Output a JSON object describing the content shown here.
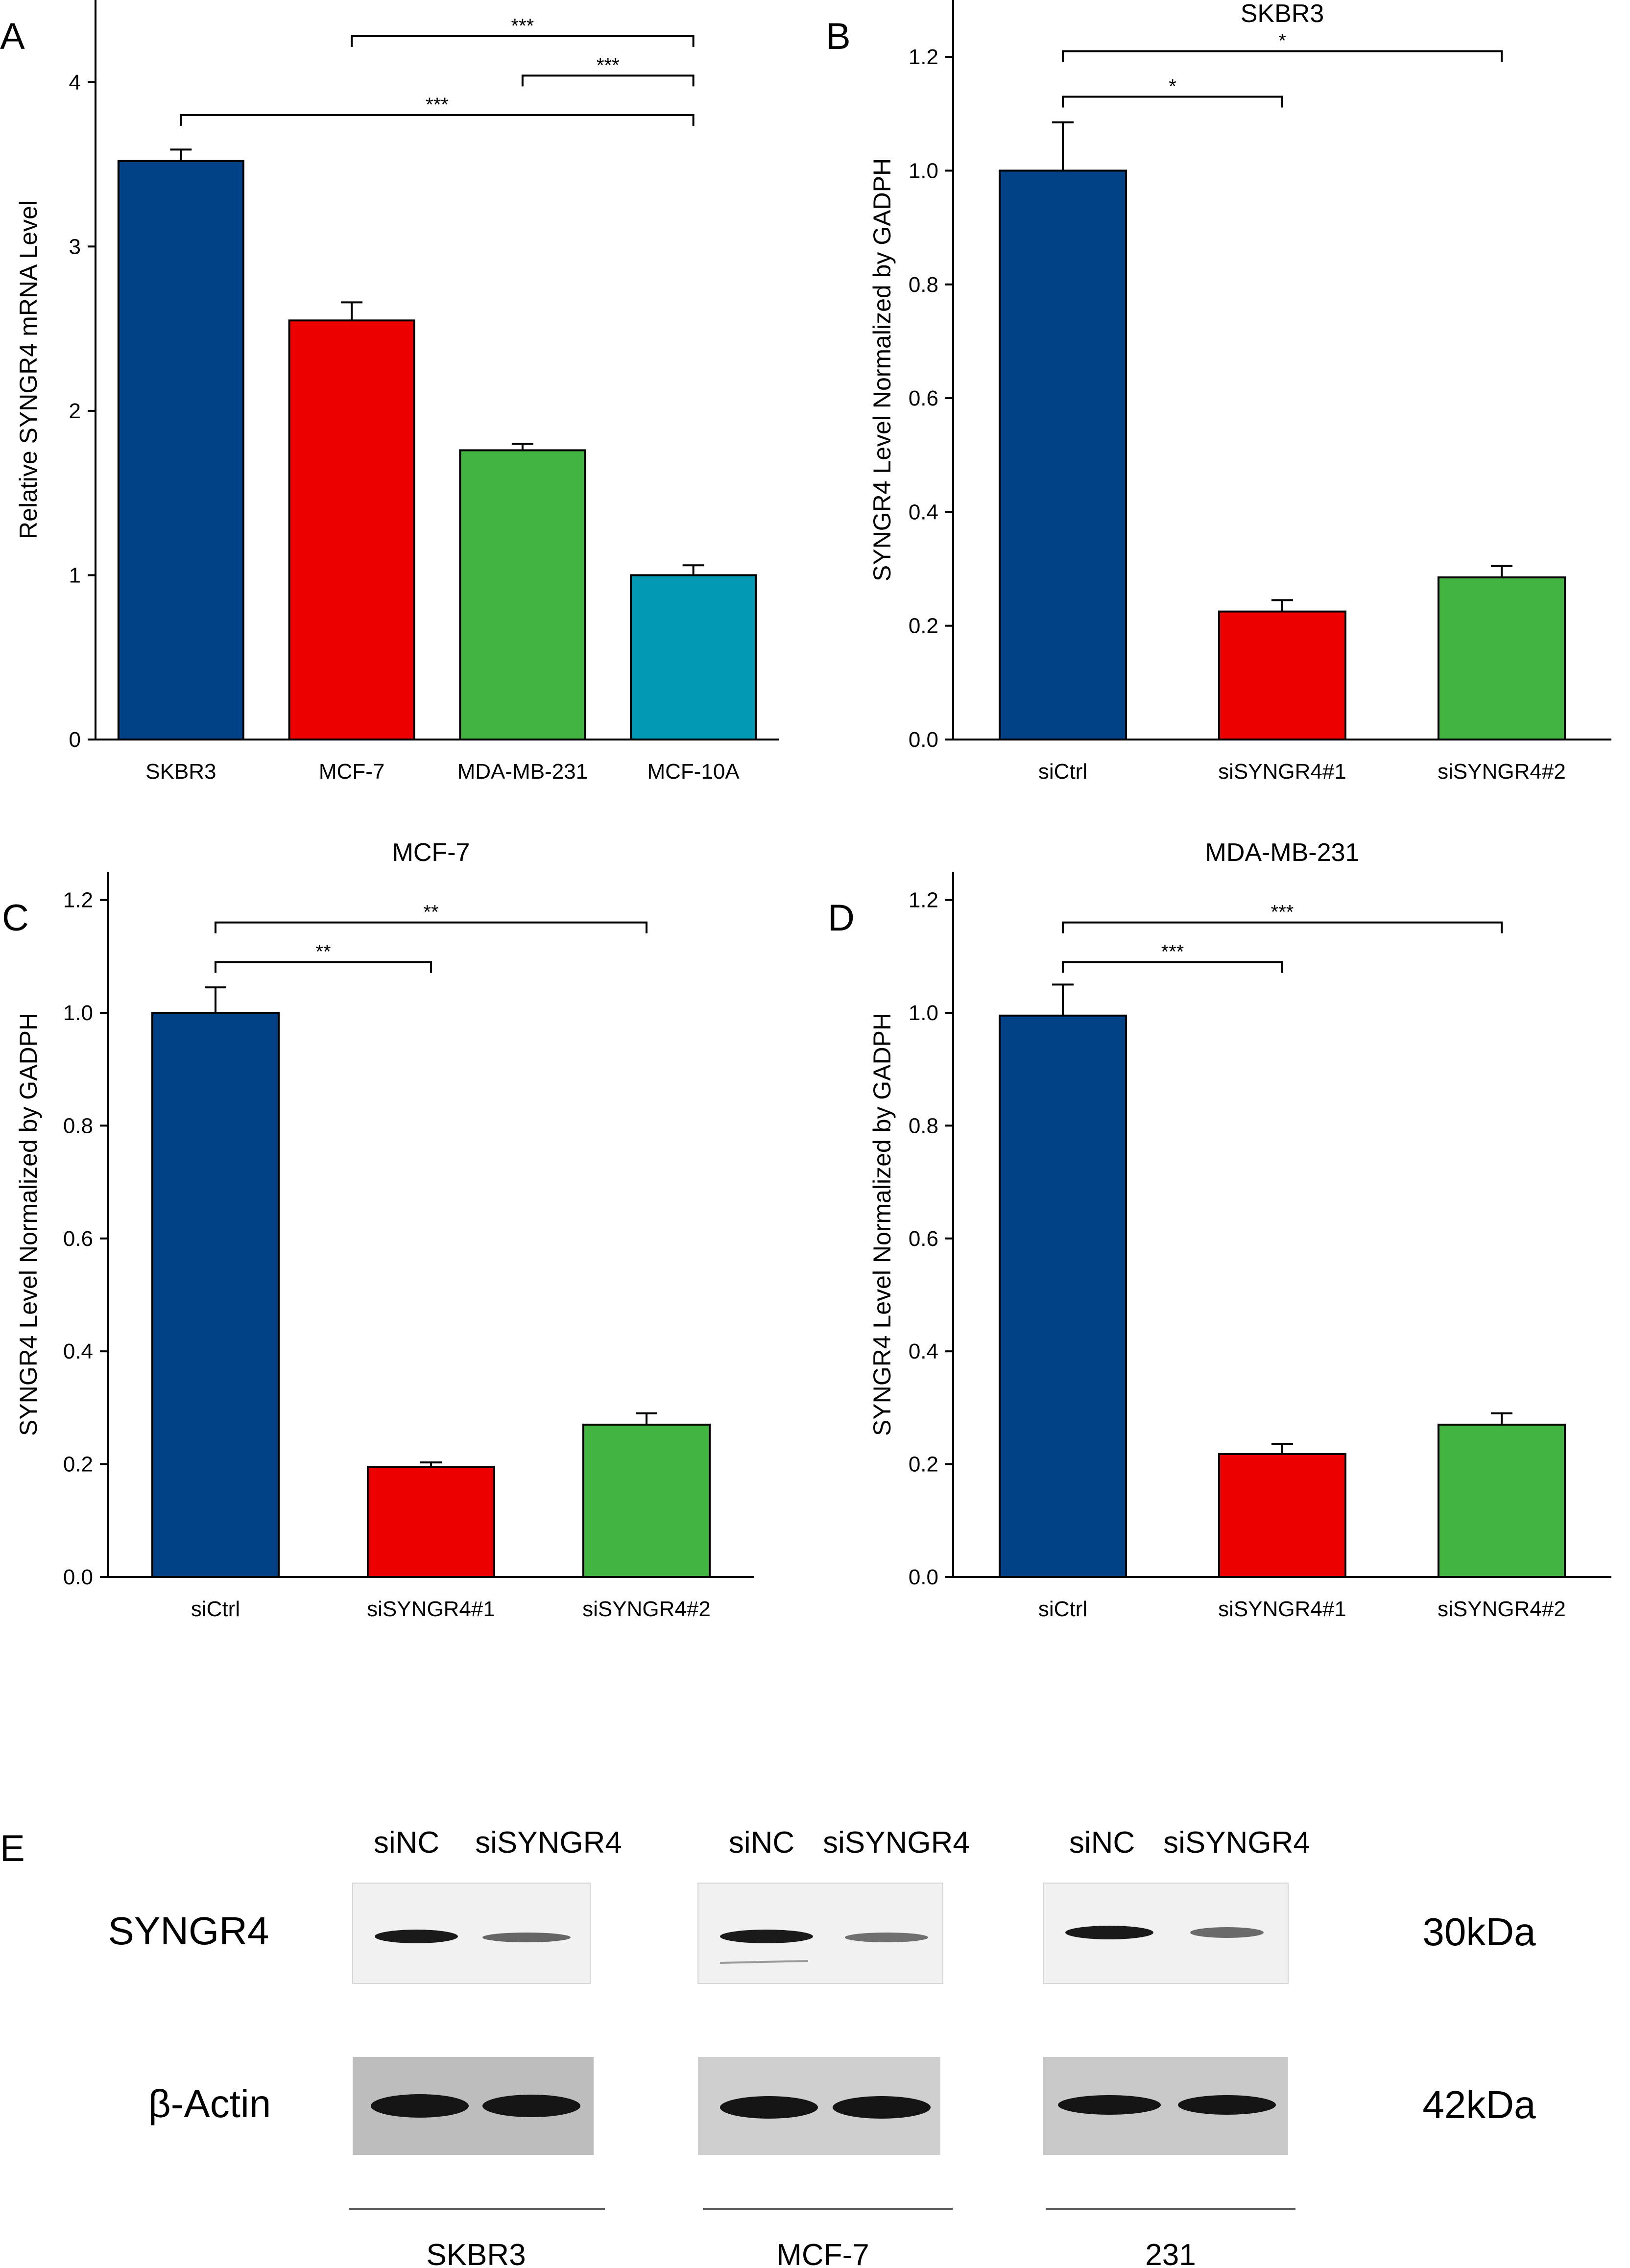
{
  "figure": {
    "panel_labels": [
      "A",
      "B",
      "C",
      "D",
      "E"
    ]
  },
  "colors": {
    "blue": "#004287",
    "red": "#EE0000",
    "green": "#42B540",
    "teal": "#0099B4",
    "axis": "#000000"
  },
  "chart_data": [
    {
      "panel": "A",
      "type": "bar",
      "title": "",
      "xlabel": "",
      "ylabel": "Relative SYNGR4 mRNA Level",
      "categories": [
        "SKBR3",
        "MCF-7",
        "MDA-MB-231",
        "MCF-10A"
      ],
      "values": [
        3.52,
        2.55,
        1.76,
        1.0
      ],
      "errors": [
        0.07,
        0.11,
        0.04,
        0.06
      ],
      "colors": [
        "#004287",
        "#EE0000",
        "#42B540",
        "#0099B4"
      ],
      "ylim": [
        0,
        4.5
      ],
      "yticks": [
        0,
        1,
        2,
        3,
        4
      ],
      "ytick_labels": [
        "0",
        "1",
        "2",
        "3",
        "4"
      ],
      "significance": [
        {
          "from": 1,
          "to": 3,
          "y": 4.28,
          "label": "***"
        },
        {
          "from": 2,
          "to": 3,
          "y": 4.04,
          "label": "***"
        },
        {
          "from": 0,
          "to": 3,
          "y": 3.8,
          "label": "***"
        }
      ]
    },
    {
      "panel": "B",
      "type": "bar",
      "title": "SKBR3",
      "xlabel": "",
      "ylabel": "SYNGR4 Level Normalized by GADPH",
      "categories": [
        "siCtrl",
        "siSYNGR4#1",
        "siSYNGR4#2"
      ],
      "values": [
        1.0,
        0.225,
        0.285
      ],
      "errors": [
        0.085,
        0.02,
        0.02
      ],
      "colors": [
        "#004287",
        "#EE0000",
        "#42B540"
      ],
      "ylim": [
        0,
        1.3
      ],
      "yticks": [
        0,
        0.2,
        0.4,
        0.6,
        0.8,
        1.0,
        1.2
      ],
      "ytick_labels": [
        "0.0",
        "0.2",
        "0.4",
        "0.6",
        "0.8",
        "1.0",
        "1.2"
      ],
      "significance": [
        {
          "from": 0,
          "to": 2,
          "y": 1.21,
          "label": "*"
        },
        {
          "from": 0,
          "to": 1,
          "y": 1.13,
          "label": "*"
        }
      ]
    },
    {
      "panel": "C",
      "type": "bar",
      "title": "MCF-7",
      "xlabel": "",
      "ylabel": "SYNGR4 Level Normalized by GADPH",
      "categories": [
        "siCtrl",
        "siSYNGR4#1",
        "siSYNGR4#2"
      ],
      "values": [
        1.0,
        0.195,
        0.27
      ],
      "errors": [
        0.045,
        0.008,
        0.02
      ],
      "colors": [
        "#004287",
        "#EE0000",
        "#42B540"
      ],
      "ylim": [
        0,
        1.25
      ],
      "yticks": [
        0,
        0.2,
        0.4,
        0.6,
        0.8,
        1.0,
        1.2
      ],
      "ytick_labels": [
        "0.0",
        "0.2",
        "0.4",
        "0.6",
        "0.8",
        "1.0",
        "1.2"
      ],
      "significance": [
        {
          "from": 0,
          "to": 2,
          "y": 1.16,
          "label": "**"
        },
        {
          "from": 0,
          "to": 1,
          "y": 1.09,
          "label": "**"
        }
      ]
    },
    {
      "panel": "D",
      "type": "bar",
      "title": "MDA-MB-231",
      "xlabel": "",
      "ylabel": "SYNGR4 Level Normalized by GADPH",
      "categories": [
        "siCtrl",
        "siSYNGR4#1",
        "siSYNGR4#2"
      ],
      "values": [
        0.995,
        0.218,
        0.27
      ],
      "errors": [
        0.055,
        0.018,
        0.02
      ],
      "colors": [
        "#004287",
        "#EE0000",
        "#42B540"
      ],
      "ylim": [
        0,
        1.25
      ],
      "yticks": [
        0,
        0.2,
        0.4,
        0.6,
        0.8,
        1.0,
        1.2
      ],
      "ytick_labels": [
        "0.0",
        "0.2",
        "0.4",
        "0.6",
        "0.8",
        "1.0",
        "1.2"
      ],
      "significance": [
        {
          "from": 0,
          "to": 2,
          "y": 1.16,
          "label": "***"
        },
        {
          "from": 0,
          "to": 1,
          "y": 1.09,
          "label": "***"
        }
      ]
    }
  ],
  "western_blot": {
    "panel": "E",
    "lane_labels": [
      "siNC",
      "siSYNGR4"
    ],
    "rows": [
      {
        "protein": "SYNGR4",
        "size": "30kDa"
      },
      {
        "protein": "β-Actin",
        "size": "42kDa"
      }
    ],
    "cell_lines": [
      "SKBR3",
      "MCF-7",
      "231"
    ],
    "band_intensity": {
      "SYNGR4": [
        [
          1.0,
          0.45
        ],
        [
          1.0,
          0.4
        ],
        [
          1.0,
          0.4
        ]
      ],
      "β-Actin": [
        [
          1.0,
          1.0
        ],
        [
          1.0,
          1.0
        ],
        [
          1.0,
          1.0
        ]
      ]
    }
  }
}
